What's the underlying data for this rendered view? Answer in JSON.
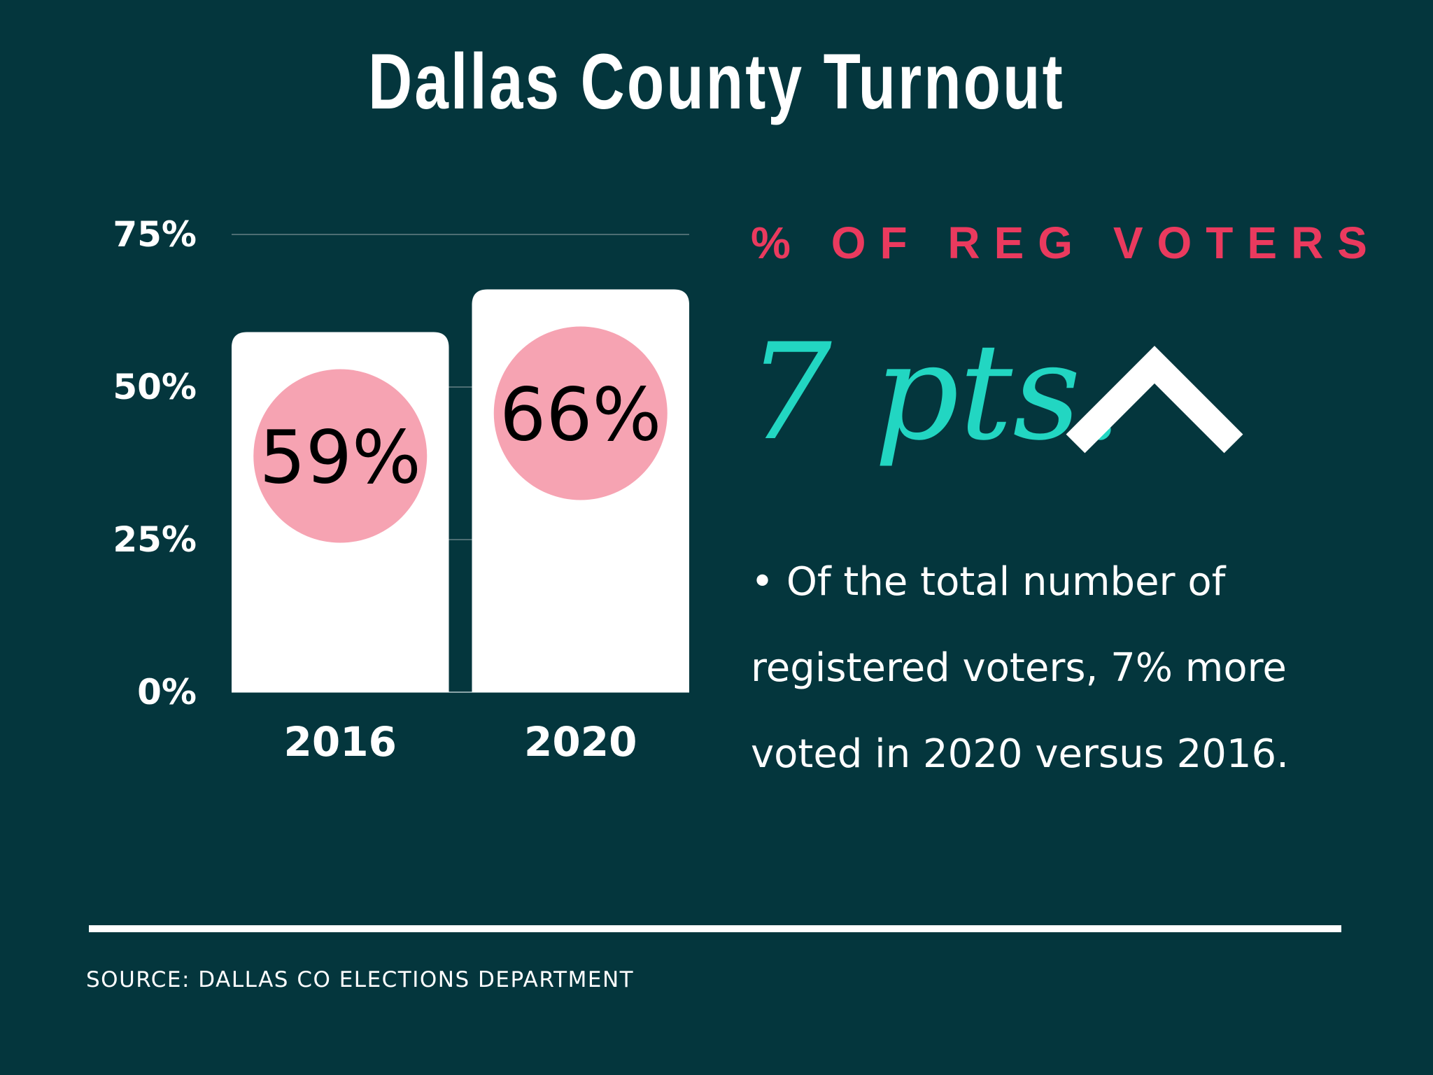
{
  "title": "Dallas County Turnout",
  "subtitle": "% OF REG VOTERS",
  "highlight": "7 pts.",
  "highlight_icon": "chevron-up-icon",
  "note": "• Of the total number of registered voters, 7% more voted in 2020 versus 2016.",
  "source": "SOURCE: DALLAS CO ELECTIONS DEPARTMENT",
  "colors": {
    "background": "#04363d",
    "bar": "#ffffff",
    "label_circle": "#f6a3b2",
    "accent_pink": "#ea3a5e",
    "accent_teal": "#22d6c2"
  },
  "chart_data": {
    "type": "bar",
    "categories": [
      "2016",
      "2020"
    ],
    "values": [
      59,
      66
    ],
    "data_labels": [
      "59%",
      "66%"
    ],
    "ylim": [
      0,
      75
    ],
    "yticks": [
      0,
      25,
      50,
      75
    ],
    "ytick_labels": [
      "0%",
      "25%",
      "50%",
      "75%"
    ],
    "grid": true,
    "title": "",
    "xlabel": "",
    "ylabel": ""
  }
}
